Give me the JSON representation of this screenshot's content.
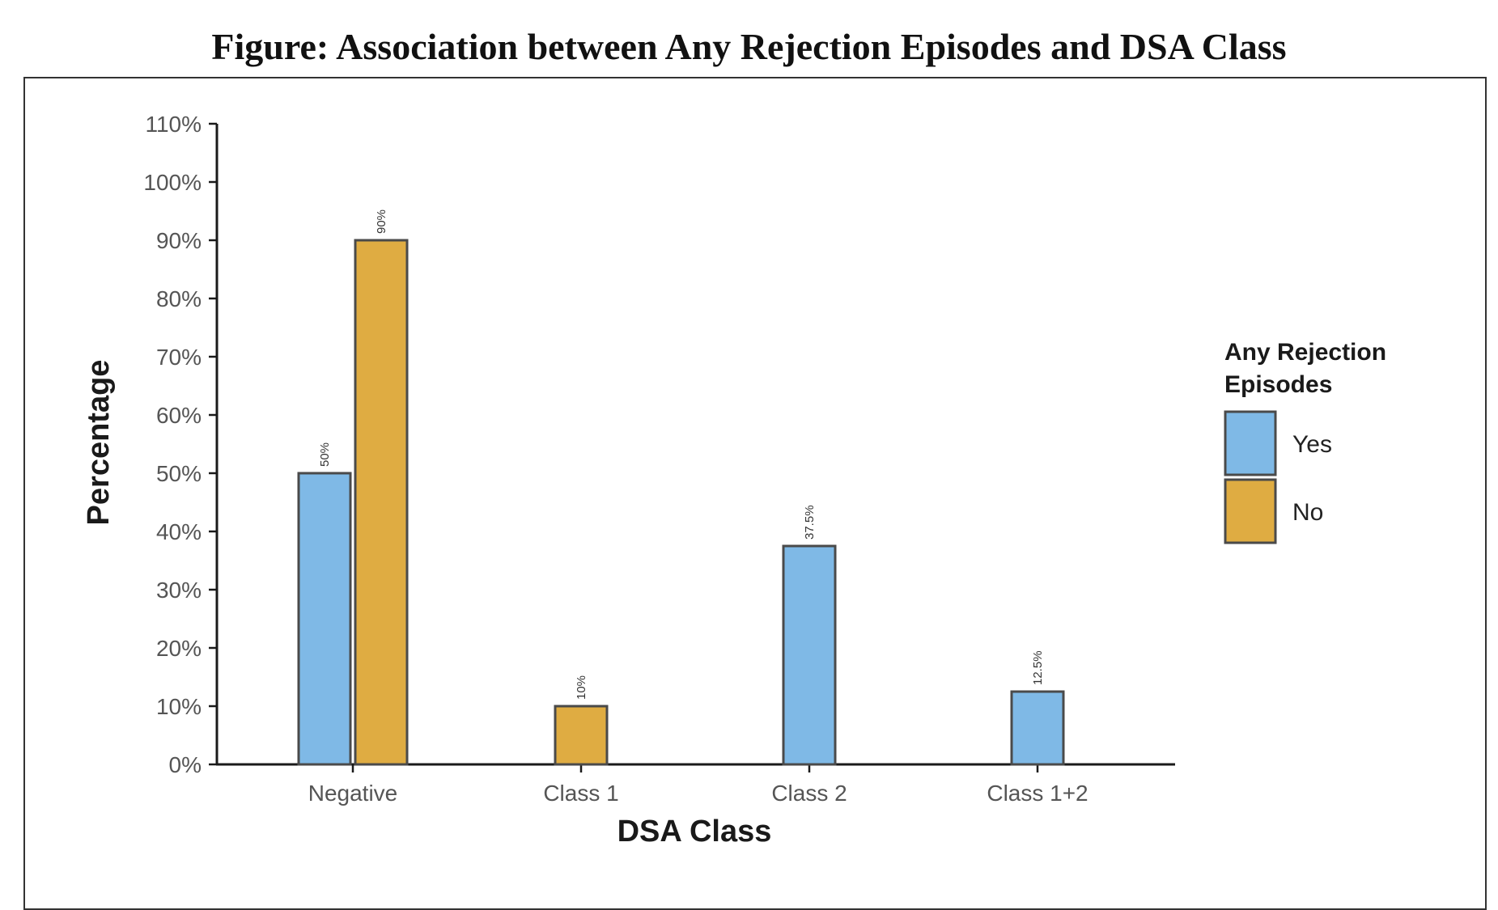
{
  "title": "Figure: Association between Any Rejection Episodes and DSA Class",
  "chart_data": {
    "type": "bar",
    "title": "Figure: Association between Any Rejection Episodes and DSA Class",
    "xlabel": "DSA Class",
    "ylabel": "Percentage",
    "categories": [
      "Negative",
      "Class 1",
      "Class 2",
      "Class 1+2"
    ],
    "series": [
      {
        "name": "Yes",
        "color": "#7FB9E6",
        "values": [
          50,
          0,
          37.5,
          12.5
        ],
        "labels": [
          "50%",
          null,
          "37.5%",
          "12.5%"
        ]
      },
      {
        "name": "No",
        "color": "#DFAC42",
        "values": [
          90,
          10,
          0,
          0
        ],
        "labels": [
          "90%",
          "10%",
          null,
          null
        ]
      }
    ],
    "ylim": [
      0,
      110
    ],
    "yticks": [
      0,
      10,
      20,
      30,
      40,
      50,
      60,
      70,
      80,
      90,
      100,
      110
    ],
    "ytick_labels": [
      "0%",
      "10%",
      "20%",
      "30%",
      "40%",
      "50%",
      "60%",
      "70%",
      "80%",
      "90%",
      "100%",
      "110%"
    ],
    "grid": false,
    "legend": {
      "title_lines": [
        "Any Rejection",
        "Episodes"
      ],
      "placement": "right"
    },
    "bar_outline_color": "#4a4a4a",
    "axis_color": "#1a1a1a"
  }
}
